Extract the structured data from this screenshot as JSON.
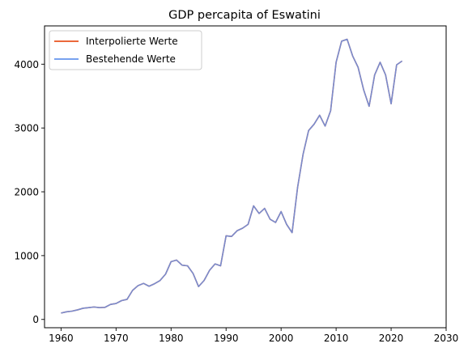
{
  "chart_data": {
    "type": "line",
    "title": "GDP percapita of Eswatini",
    "xlabel": "",
    "ylabel": "",
    "xlim": [
      1957,
      2030
    ],
    "ylim": [
      -130,
      4600
    ],
    "xticks": [
      1960,
      1970,
      1980,
      1990,
      2000,
      2010,
      2020,
      2030
    ],
    "yticks": [
      0,
      1000,
      2000,
      3000,
      4000
    ],
    "grid": false,
    "legend_position": "top-left",
    "x": [
      1960,
      1961,
      1962,
      1963,
      1964,
      1965,
      1966,
      1967,
      1968,
      1969,
      1970,
      1971,
      1972,
      1973,
      1974,
      1975,
      1976,
      1977,
      1978,
      1979,
      1980,
      1981,
      1982,
      1983,
      1984,
      1985,
      1986,
      1987,
      1988,
      1989,
      1990,
      1991,
      1992,
      1993,
      1994,
      1995,
      1996,
      1997,
      1998,
      1999,
      2000,
      2001,
      2002,
      2003,
      2004,
      2005,
      2006,
      2007,
      2008,
      2009,
      2010,
      2011,
      2012,
      2013,
      2014,
      2015,
      2016,
      2017,
      2018,
      2019,
      2020,
      2021,
      2022
    ],
    "series": [
      {
        "name": "Interpolierte Werte",
        "color": "#e8531f",
        "values": [
          100,
          120,
          130,
          150,
          175,
          185,
          195,
          185,
          190,
          235,
          250,
          295,
          315,
          455,
          530,
          565,
          520,
          560,
          610,
          710,
          905,
          930,
          850,
          840,
          720,
          515,
          610,
          770,
          870,
          840,
          1310,
          1300,
          1390,
          1430,
          1490,
          1780,
          1660,
          1740,
          1570,
          1520,
          1690,
          1490,
          1360,
          2070,
          2590,
          2960,
          3060,
          3200,
          3030,
          3270,
          4030,
          4360,
          4390,
          4130,
          3950,
          3600,
          3340,
          3830,
          4030,
          3830,
          3380,
          3990,
          4050
        ]
      },
      {
        "name": "Bestehende Werte",
        "color": "#6495ed",
        "values": [
          100,
          120,
          130,
          150,
          175,
          185,
          195,
          185,
          190,
          235,
          250,
          295,
          315,
          455,
          530,
          565,
          520,
          560,
          610,
          710,
          905,
          930,
          850,
          840,
          720,
          515,
          610,
          770,
          870,
          840,
          1310,
          1300,
          1390,
          1430,
          1490,
          1780,
          1660,
          1740,
          1570,
          1520,
          1690,
          1490,
          1360,
          2070,
          2590,
          2960,
          3060,
          3200,
          3030,
          3270,
          4030,
          4360,
          4390,
          4130,
          3950,
          3600,
          3340,
          3830,
          4030,
          3830,
          3380,
          3990,
          4050
        ]
      }
    ]
  }
}
